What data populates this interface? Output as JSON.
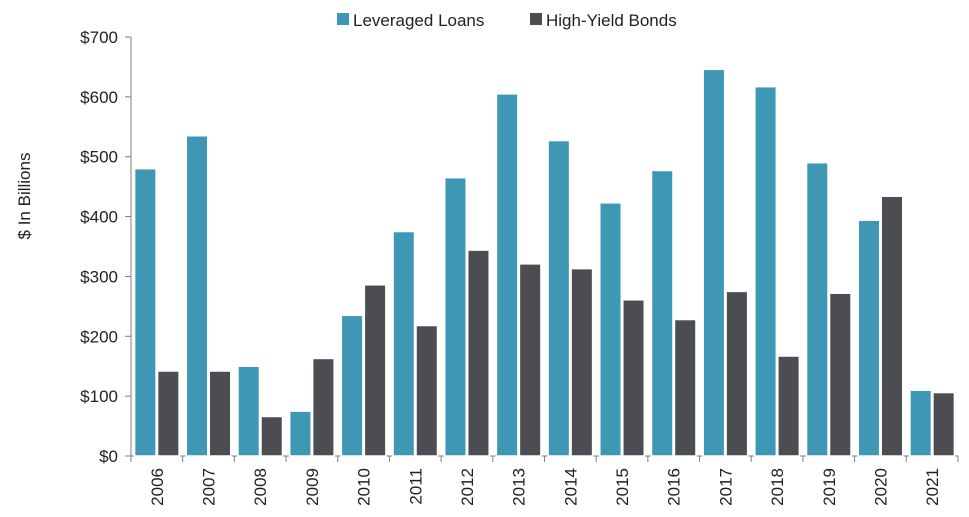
{
  "chart_data": {
    "type": "bar",
    "categories": [
      "2006",
      "2007",
      "2008",
      "2009",
      "2010",
      "2011",
      "2012",
      "2013",
      "2014",
      "2015",
      "2016",
      "2017",
      "2018",
      "2019",
      "2020",
      "2021"
    ],
    "series": [
      {
        "name": "Leveraged Loans",
        "color": "#3e97b5",
        "values": [
          480,
          535,
          150,
          75,
          235,
          375,
          465,
          605,
          527,
          423,
          477,
          646,
          617,
          490,
          394,
          110
        ]
      },
      {
        "name": "High-Yield Bonds",
        "color": "#4b4d53",
        "values": [
          142,
          142,
          66,
          163,
          286,
          218,
          344,
          321,
          313,
          261,
          228,
          275,
          167,
          272,
          434,
          106
        ]
      }
    ],
    "title": "",
    "xlabel": "",
    "ylabel": "$ In Billions",
    "ylim": [
      0,
      700
    ],
    "yticks": [
      0,
      100,
      200,
      300,
      400,
      500,
      600,
      700
    ],
    "ytick_labels": [
      "$0",
      "$100",
      "$200",
      "$300",
      "$400",
      "$500",
      "$600",
      "$700"
    ],
    "legend_position": "top-center",
    "grid": false
  }
}
